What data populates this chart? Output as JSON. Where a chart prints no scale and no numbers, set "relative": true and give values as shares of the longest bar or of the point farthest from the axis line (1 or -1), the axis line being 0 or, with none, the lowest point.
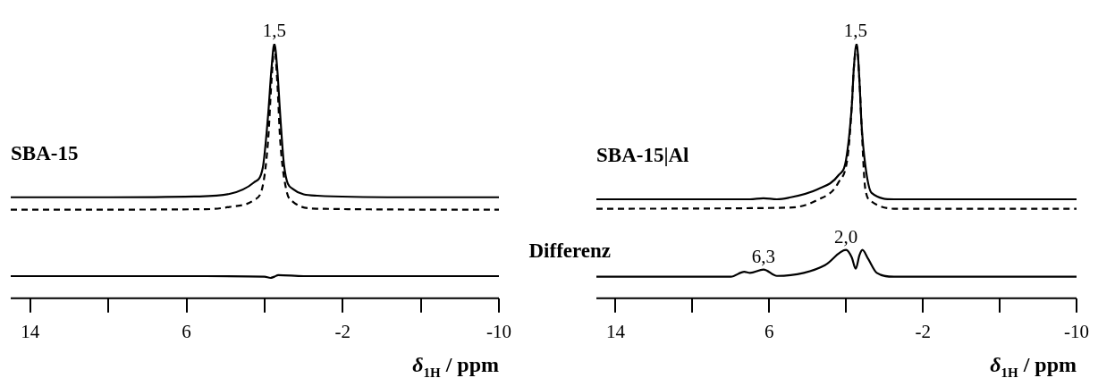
{
  "chart_data": [
    {
      "type": "line",
      "relative": true,
      "xlabel": "δ$_{1H}$ / ppm",
      "xlim": [
        15,
        -10
      ],
      "xticks": [
        14,
        {
          "value": 10,
          "label": null
        },
        6,
        {
          "value": 2,
          "label": null
        },
        -2,
        {
          "value": -6,
          "label": null
        },
        -10
      ],
      "grid": false,
      "legend": false,
      "marker": "none",
      "annotations": [
        {
          "text": "1,5",
          "x": 1.5,
          "y": 1
        }
      ],
      "series": [
        {
          "name": "SBA-15",
          "color": "#000000",
          "line_style": "solid",
          "x": [
            15,
            10,
            5.6,
            3.8,
            2.55,
            2.1,
            1.82,
            1.65,
            1.5,
            1.35,
            1.2,
            1.0,
            0.56,
            -0.7,
            -5,
            -10
          ],
          "values": [
            0.397,
            0.397,
            0.4,
            0.41,
            0.455,
            0.51,
            0.72,
            0.9,
            1.0,
            0.9,
            0.72,
            0.52,
            0.43,
            0.403,
            0.397,
            0.397
          ]
        },
        {
          "color": "#000000",
          "line_style": "dashed",
          "x": [
            15,
            5,
            3.8,
            2.55,
            2.1,
            1.82,
            1.65,
            1.5,
            1.35,
            1.2,
            0.9,
            0.56,
            -0.7,
            -10
          ],
          "values": [
            0.348,
            0.35,
            0.359,
            0.386,
            0.44,
            0.62,
            0.85,
            0.986,
            0.85,
            0.62,
            0.43,
            0.38,
            0.352,
            0.348
          ]
        },
        {
          "color": "#000000",
          "line_style": "solid",
          "x": [
            15,
            5,
            2,
            1.7,
            1.5,
            1.3,
            0,
            -10
          ],
          "values": [
            0.087,
            0.087,
            0.085,
            0.08,
            0.085,
            0.091,
            0.087,
            0.087
          ]
        }
      ]
    },
    {
      "type": "line",
      "relative": true,
      "xlabel": "δ$_{1H}$ / ppm",
      "xlim": [
        15,
        -10
      ],
      "xticks": [
        14,
        {
          "value": 10,
          "label": null
        },
        6,
        {
          "value": 2,
          "label": null
        },
        -2,
        {
          "value": -6,
          "label": null
        },
        -10
      ],
      "grid": false,
      "legend": false,
      "marker": "none",
      "annotations": [
        {
          "text": "1,5",
          "x": 1.5,
          "y": 1
        },
        {
          "text": "6,3",
          "x": 6.3,
          "y": 0.113
        },
        {
          "text": "2,0",
          "x": 2.0,
          "y": 0.19
        }
      ],
      "series": [
        {
          "name": "SBA-15|Al",
          "color": "#000000",
          "line_style": "solid",
          "x": [
            15,
            7,
            6.3,
            5.6,
            5.0,
            3.5,
            2.4,
            2.0,
            1.7,
            1.6,
            1.45,
            1.3,
            1.2,
            1.0,
            0.67,
            -0.5,
            -10
          ],
          "values": [
            0.389,
            0.389,
            0.393,
            0.389,
            0.395,
            0.428,
            0.483,
            0.545,
            0.759,
            0.9,
            1.0,
            0.85,
            0.69,
            0.524,
            0.414,
            0.389,
            0.389
          ]
        },
        {
          "color": "#000000",
          "line_style": "dashed",
          "x": [
            15,
            5,
            3.5,
            2.4,
            1.9,
            1.7,
            1.6,
            1.45,
            1.3,
            1.2,
            1.0,
            0.67,
            -0.5,
            -10
          ],
          "values": [
            0.352,
            0.356,
            0.386,
            0.455,
            0.566,
            0.76,
            0.9,
            0.99,
            0.85,
            0.69,
            0.43,
            0.38,
            0.352,
            0.352
          ]
        },
        {
          "name": "Differenz",
          "color": "#000000",
          "line_style": "solid",
          "x": [
            15,
            8,
            7.3,
            7.0,
            6.3,
            5.6,
            4.2,
            3.1,
            2.0,
            1.7,
            1.5,
            1.3,
            1.15,
            0.85,
            0.4,
            -0.5,
            -10
          ],
          "values": [
            0.085,
            0.085,
            0.104,
            0.1,
            0.113,
            0.088,
            0.1,
            0.13,
            0.19,
            0.16,
            0.116,
            0.17,
            0.19,
            0.155,
            0.1,
            0.085,
            0.085
          ]
        }
      ]
    }
  ]
}
